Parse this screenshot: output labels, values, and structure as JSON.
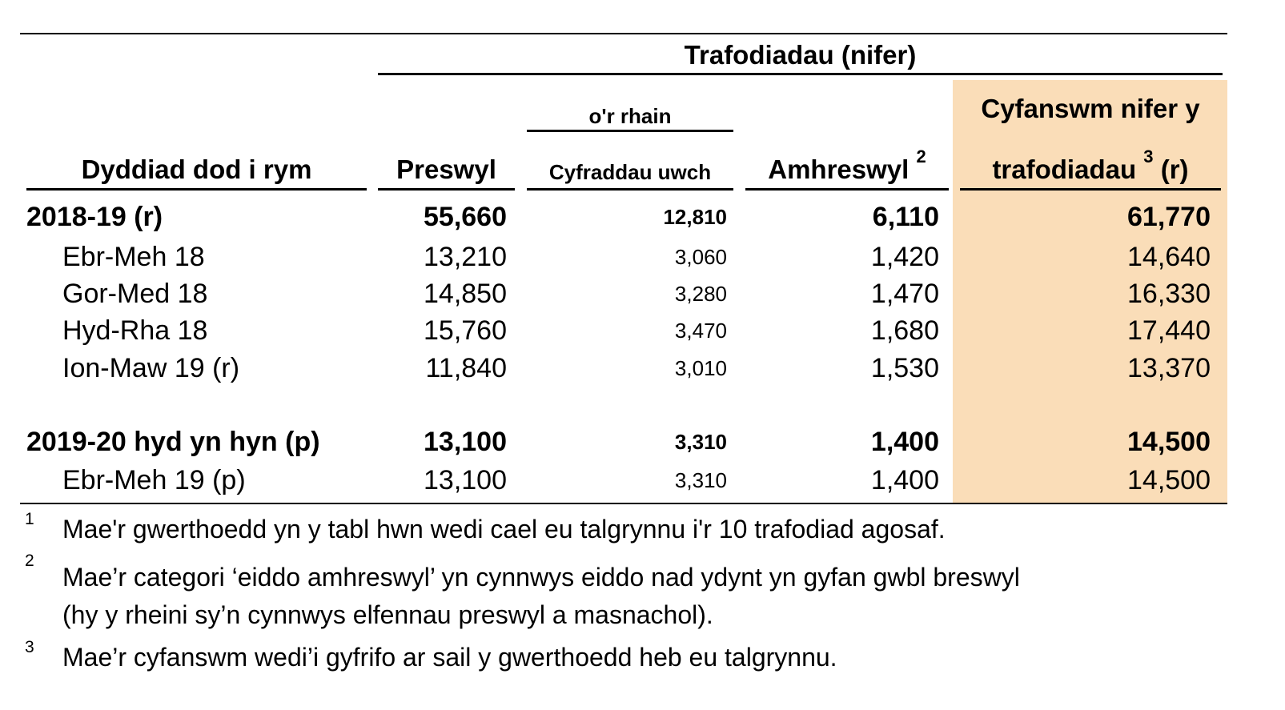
{
  "header": {
    "group_title": "Trafodiadau (nifer)",
    "col_date": "Dyddiad dod i rym",
    "col_residential": "Preswyl",
    "subgroup": "o'r rhain",
    "col_higher_rates": "Cyfraddau uwch",
    "col_nonresidential": "Amhreswyl",
    "col_nonresidential_sup": "2",
    "col_total_line1": "Cyfanswm nifer y",
    "col_total_line2": "trafodiadau",
    "col_total_sup": "3",
    "col_total_suffix": "(r)"
  },
  "highlight_color": "#FADDB8",
  "rows": [
    {
      "label": "2018-19 (r)",
      "residential": "55,660",
      "higher": "12,810",
      "nonresidential": "6,110",
      "total": "61,770",
      "bold": true
    },
    {
      "label": "Ebr-Meh 18",
      "residential": "13,210",
      "higher": "3,060",
      "nonresidential": "1,420",
      "total": "14,640"
    },
    {
      "label": "Gor-Med 18",
      "residential": "14,850",
      "higher": "3,280",
      "nonresidential": "1,470",
      "total": "16,330"
    },
    {
      "label": "Hyd-Rha 18",
      "residential": "15,760",
      "higher": "3,470",
      "nonresidential": "1,680",
      "total": "17,440"
    },
    {
      "label": "Ion-Maw 19 (r)",
      "residential": "11,840",
      "higher": "3,010",
      "nonresidential": "1,530",
      "total": "13,370"
    },
    {
      "label": "2019-20 hyd yn hyn (p)",
      "residential": "13,100",
      "higher": "3,310",
      "nonresidential": "1,400",
      "total": "14,500",
      "bold": true
    },
    {
      "label": "Ebr-Meh 19 (p)",
      "residential": "13,100",
      "higher": "3,310",
      "nonresidential": "1,400",
      "total": "14,500"
    }
  ],
  "footnotes": [
    {
      "num": "1",
      "lines": [
        "Mae'r gwerthoedd yn y tabl hwn wedi cael eu talgrynnu i'r 10 trafodiad agosaf."
      ]
    },
    {
      "num": "2",
      "lines": [
        "Mae’r categori ‘eiddo amhreswyl’ yn cynnwys eiddo nad ydynt yn gyfan gwbl breswyl",
        "(hy y rheini sy’n cynnwys elfennau preswyl a masnachol)."
      ]
    },
    {
      "num": "3",
      "lines": [
        "Mae’r cyfanswm wedi’i gyfrifo ar sail y gwerthoedd heb eu talgrynnu."
      ]
    }
  ]
}
